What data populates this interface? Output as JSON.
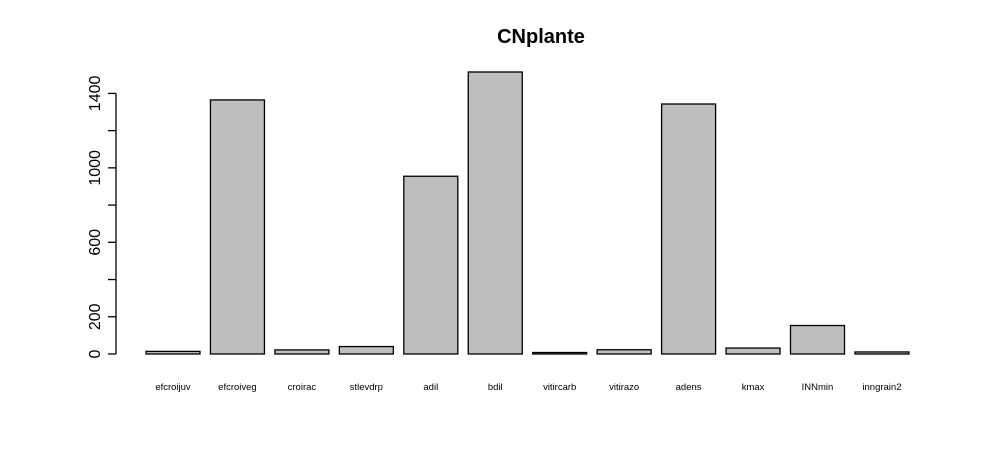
{
  "chart_data": {
    "type": "bar",
    "title": "CNplante",
    "xlabel": "",
    "ylabel": "",
    "categories": [
      "efcroijuv",
      "efcroiveg",
      "croirac",
      "stlevdrp",
      "adil",
      "bdil",
      "vitircarb",
      "vitirazo",
      "adens",
      "kmax",
      "INNmin",
      "inngrain2"
    ],
    "values": [
      14,
      1365,
      22,
      40,
      955,
      1515,
      8,
      23,
      1343,
      32,
      153,
      11
    ],
    "ylim": [
      0,
      1515
    ],
    "y_ticks": [
      0,
      200,
      400,
      600,
      800,
      1000,
      1200,
      1400
    ],
    "y_tick_labels": [
      "0",
      "200",
      "",
      "600",
      "",
      "1000",
      "",
      "1400"
    ],
    "grid": false,
    "legend": "none",
    "colors": {
      "bar_fill": "#bebebe",
      "bar_stroke": "#000000"
    }
  }
}
